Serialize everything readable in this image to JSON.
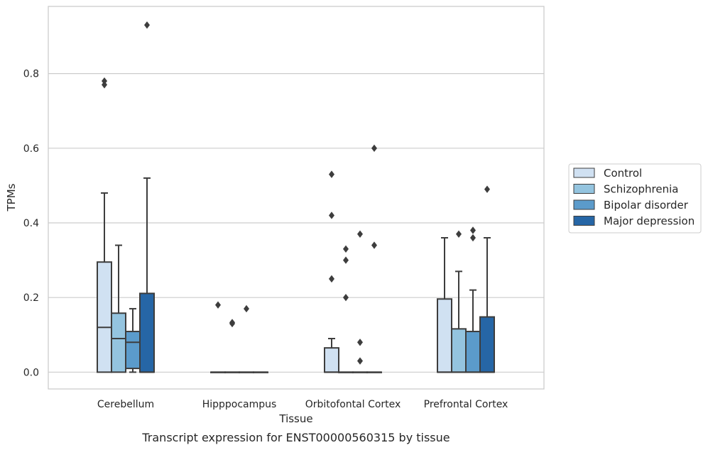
{
  "caption": "Transcript expression for ENST00000560315 by tissue",
  "chart_data": {
    "type": "boxplot",
    "xlabel": "Tissue",
    "ylabel": "TPMs",
    "ylim": [
      -0.045,
      0.98
    ],
    "yticks": [
      0.0,
      0.2,
      0.4,
      0.6,
      0.8
    ],
    "ytick_labels": [
      "0.0",
      "0.2",
      "0.4",
      "0.6",
      "0.8"
    ],
    "grid": "horizontal",
    "legend": "right",
    "categories": [
      "Cerebellum",
      "Hipppocampus",
      "Orbitofontal Cortex",
      "Prefrontal Cortex"
    ],
    "series": [
      {
        "name": "Control",
        "color": "#d0e1f2",
        "boxes": [
          {
            "q1": 0.0,
            "median": 0.12,
            "q3": 0.295,
            "whisker_low": 0.0,
            "whisker_high": 0.48,
            "outliers": [
              0.77,
              0.78
            ]
          },
          {
            "q1": 0.0,
            "median": 0.0,
            "q3": 0.0,
            "whisker_low": 0.0,
            "whisker_high": 0.0,
            "outliers": [
              0.18
            ]
          },
          {
            "q1": 0.0,
            "median": 0.0,
            "q3": 0.065,
            "whisker_low": 0.0,
            "whisker_high": 0.09,
            "outliers": [
              0.25,
              0.42,
              0.53
            ]
          },
          {
            "q1": 0.0,
            "median": 0.0,
            "q3": 0.196,
            "whisker_low": 0.0,
            "whisker_high": 0.36,
            "outliers": []
          }
        ]
      },
      {
        "name": "Schizophrenia",
        "color": "#94c4df",
        "boxes": [
          {
            "q1": 0.0,
            "median": 0.09,
            "q3": 0.158,
            "whisker_low": 0.0,
            "whisker_high": 0.34,
            "outliers": []
          },
          {
            "q1": 0.0,
            "median": 0.0,
            "q3": 0.0,
            "whisker_low": 0.0,
            "whisker_high": 0.0,
            "outliers": [
              0.13,
              0.133
            ]
          },
          {
            "q1": 0.0,
            "median": 0.0,
            "q3": 0.0,
            "whisker_low": 0.0,
            "whisker_high": 0.0,
            "outliers": [
              0.2,
              0.3,
              0.33
            ]
          },
          {
            "q1": 0.0,
            "median": 0.0,
            "q3": 0.116,
            "whisker_low": 0.0,
            "whisker_high": 0.27,
            "outliers": [
              0.37
            ]
          }
        ]
      },
      {
        "name": "Bipolar disorder",
        "color": "#5b9bcb",
        "boxes": [
          {
            "q1": 0.01,
            "median": 0.08,
            "q3": 0.109,
            "whisker_low": 0.0,
            "whisker_high": 0.17,
            "outliers": []
          },
          {
            "q1": 0.0,
            "median": 0.0,
            "q3": 0.0,
            "whisker_low": 0.0,
            "whisker_high": 0.0,
            "outliers": [
              0.17
            ]
          },
          {
            "q1": 0.0,
            "median": 0.0,
            "q3": 0.0,
            "whisker_low": 0.0,
            "whisker_high": 0.0,
            "outliers": [
              0.03,
              0.08,
              0.37
            ]
          },
          {
            "q1": 0.0,
            "median": 0.0,
            "q3": 0.109,
            "whisker_low": 0.0,
            "whisker_high": 0.22,
            "outliers": [
              0.36,
              0.38
            ]
          }
        ]
      },
      {
        "name": "Major depression",
        "color": "#2666a6",
        "boxes": [
          {
            "q1": 0.0,
            "median": 0.0,
            "q3": 0.211,
            "whisker_low": 0.0,
            "whisker_high": 0.52,
            "outliers": [
              0.93
            ]
          },
          {
            "q1": 0.0,
            "median": 0.0,
            "q3": 0.0,
            "whisker_low": 0.0,
            "whisker_high": 0.0,
            "outliers": []
          },
          {
            "q1": 0.0,
            "median": 0.0,
            "q3": 0.0,
            "whisker_low": 0.0,
            "whisker_high": 0.0,
            "outliers": [
              0.34,
              0.6
            ]
          },
          {
            "q1": 0.0,
            "median": 0.0,
            "q3": 0.148,
            "whisker_low": 0.0,
            "whisker_high": 0.36,
            "outliers": [
              0.49
            ]
          }
        ]
      }
    ]
  }
}
